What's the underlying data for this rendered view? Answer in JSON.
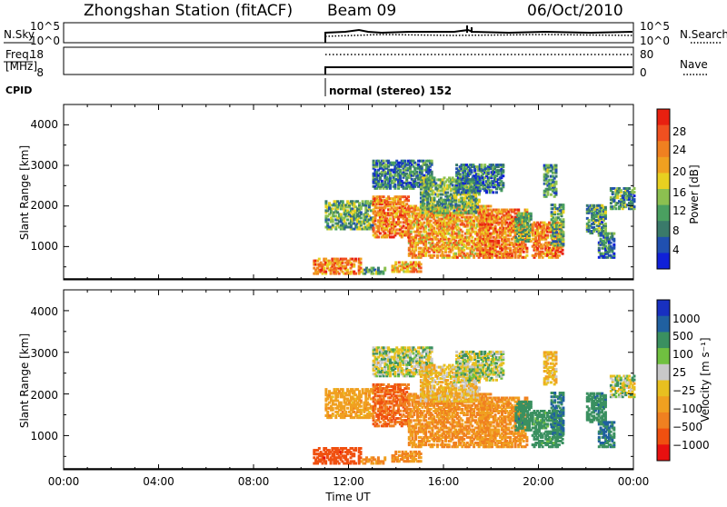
{
  "header": {
    "station": "Zhongshan Station (fitACF)",
    "beam": "Beam 09",
    "date": "06/Oct/2010"
  },
  "noise_panel": {
    "left_label": "N.Sky",
    "right_label": "N.Search",
    "left_ticks": [
      "10^5",
      "10^0"
    ],
    "right_ticks": [
      "10^5",
      "10^0"
    ]
  },
  "freq_panel": {
    "left_label_1": "Freq.",
    "left_label_2": "[MHz]",
    "right_label": "Nave",
    "left_ticks": [
      "18",
      "8"
    ],
    "right_ticks": [
      "80",
      "0"
    ]
  },
  "cpid": {
    "label": "CPID",
    "text": "normal (stereo) 152"
  },
  "power_panel": {
    "ylabel": "Slant Range [km]",
    "yticks": [
      "4000",
      "3000",
      "2000",
      "1000"
    ],
    "colorbar_label": "Power [dB]",
    "colorbar_ticks": [
      "28",
      "24",
      "20",
      "16",
      "12",
      "8",
      "4"
    ],
    "colors": [
      "#1020d8",
      "#2050b0",
      "#3a7a6a",
      "#4aa060",
      "#8cc050",
      "#e8d020",
      "#f0a020",
      "#f08020",
      "#f05020",
      "#e82010"
    ]
  },
  "velocity_panel": {
    "ylabel": "Slant Range [km]",
    "yticks": [
      "4000",
      "3000",
      "2000",
      "1000"
    ],
    "colorbar_label": "Velocity [m s⁻¹]",
    "colorbar_ticks": [
      "1000",
      "500",
      "100",
      "25",
      "−25",
      "−100",
      "−500",
      "−1000"
    ],
    "colors": [
      "#1830c0",
      "#2060a0",
      "#3a9060",
      "#70c040",
      "#c8c8c8",
      "#e8c020",
      "#f0a020",
      "#f08020",
      "#f05010",
      "#e81010"
    ]
  },
  "xaxis": {
    "label": "Time UT",
    "ticks": [
      "00:00",
      "04:00",
      "08:00",
      "12:00",
      "16:00",
      "20:00",
      "00:00"
    ]
  },
  "chart_data": [
    {
      "type": "heatmap",
      "title": "Power",
      "xlabel": "Time UT",
      "ylabel": "Slant Range [km]",
      "xlim": [
        "00:00",
        "24:00"
      ],
      "ylim": [
        180,
        4500
      ],
      "z_range": [
        0,
        30
      ],
      "z_label": "Power [dB]",
      "echo_regions": [
        {
          "t_start": 10.5,
          "t_end": 12.5,
          "range_lo": 300,
          "range_hi": 700,
          "z": 22
        },
        {
          "t_start": 11.0,
          "t_end": 13.0,
          "range_lo": 1400,
          "range_hi": 2100,
          "z": 10
        },
        {
          "t_start": 12.5,
          "t_end": 13.5,
          "range_lo": 300,
          "range_hi": 450,
          "z": 10
        },
        {
          "t_start": 13.0,
          "t_end": 14.5,
          "range_lo": 1200,
          "range_hi": 2200,
          "z": 22
        },
        {
          "t_start": 13.0,
          "t_end": 15.5,
          "range_lo": 2400,
          "range_hi": 3100,
          "z": 6
        },
        {
          "t_start": 13.8,
          "t_end": 15.0,
          "range_lo": 350,
          "range_hi": 600,
          "z": 20
        },
        {
          "t_start": 14.5,
          "t_end": 18.0,
          "range_lo": 700,
          "range_hi": 2000,
          "z": 20
        },
        {
          "t_start": 15.0,
          "t_end": 17.5,
          "range_lo": 1800,
          "range_hi": 2700,
          "z": 10
        },
        {
          "t_start": 16.5,
          "t_end": 18.5,
          "range_lo": 2300,
          "range_hi": 3000,
          "z": 6
        },
        {
          "t_start": 17.5,
          "t_end": 19.5,
          "range_lo": 700,
          "range_hi": 1900,
          "z": 22
        },
        {
          "t_start": 19.0,
          "t_end": 19.7,
          "range_lo": 1100,
          "range_hi": 1800,
          "z": 12
        },
        {
          "t_start": 19.7,
          "t_end": 21.0,
          "range_lo": 700,
          "range_hi": 1600,
          "z": 22
        },
        {
          "t_start": 20.5,
          "t_end": 21.0,
          "range_lo": 1000,
          "range_hi": 2000,
          "z": 10
        },
        {
          "t_start": 20.2,
          "t_end": 20.7,
          "range_lo": 2200,
          "range_hi": 3000,
          "z": 8
        },
        {
          "t_start": 22.0,
          "t_end": 22.8,
          "range_lo": 1300,
          "range_hi": 2000,
          "z": 8
        },
        {
          "t_start": 22.5,
          "t_end": 23.2,
          "range_lo": 700,
          "range_hi": 1300,
          "z": 6
        },
        {
          "t_start": 23.0,
          "t_end": 24.0,
          "range_lo": 1900,
          "range_hi": 2400,
          "z": 8
        }
      ]
    },
    {
      "type": "heatmap",
      "title": "Velocity",
      "xlabel": "Time UT",
      "ylabel": "Slant Range [km]",
      "xlim": [
        "00:00",
        "24:00"
      ],
      "ylim": [
        180,
        4500
      ],
      "z_range": [
        -1000,
        1000
      ],
      "z_label": "Velocity [m s⁻¹]",
      "echo_regions": [
        {
          "t_start": 10.5,
          "t_end": 12.5,
          "range_lo": 300,
          "range_hi": 700,
          "z": -700
        },
        {
          "t_start": 11.0,
          "t_end": 13.0,
          "range_lo": 1400,
          "range_hi": 2100,
          "z": -200
        },
        {
          "t_start": 12.5,
          "t_end": 13.5,
          "range_lo": 300,
          "range_hi": 450,
          "z": -300
        },
        {
          "t_start": 13.0,
          "t_end": 14.5,
          "range_lo": 1200,
          "range_hi": 2200,
          "z": -500
        },
        {
          "t_start": 13.0,
          "t_end": 15.5,
          "range_lo": 2400,
          "range_hi": 3100,
          "z": 0
        },
        {
          "t_start": 13.8,
          "t_end": 15.0,
          "range_lo": 350,
          "range_hi": 600,
          "z": -300
        },
        {
          "t_start": 14.5,
          "t_end": 18.0,
          "range_lo": 700,
          "range_hi": 2000,
          "z": -300
        },
        {
          "t_start": 15.0,
          "t_end": 17.5,
          "range_lo": 1800,
          "range_hi": 2700,
          "z": -80
        },
        {
          "t_start": 16.5,
          "t_end": 18.5,
          "range_lo": 2300,
          "range_hi": 3000,
          "z": 10
        },
        {
          "t_start": 17.5,
          "t_end": 19.5,
          "range_lo": 700,
          "range_hi": 1900,
          "z": -300
        },
        {
          "t_start": 19.0,
          "t_end": 19.7,
          "range_lo": 1100,
          "range_hi": 1800,
          "z": 200
        },
        {
          "t_start": 19.7,
          "t_end": 21.0,
          "range_lo": 700,
          "range_hi": 1600,
          "z": 150
        },
        {
          "t_start": 20.5,
          "t_end": 21.0,
          "range_lo": 1000,
          "range_hi": 2000,
          "z": 300
        },
        {
          "t_start": 20.2,
          "t_end": 20.7,
          "range_lo": 2200,
          "range_hi": 3000,
          "z": -100
        },
        {
          "t_start": 22.0,
          "t_end": 22.8,
          "range_lo": 1300,
          "range_hi": 2000,
          "z": 200
        },
        {
          "t_start": 22.5,
          "t_end": 23.2,
          "range_lo": 700,
          "range_hi": 1300,
          "z": 300
        },
        {
          "t_start": 23.0,
          "t_end": 24.0,
          "range_lo": 1900,
          "range_hi": 2400,
          "z": 0
        }
      ]
    }
  ]
}
